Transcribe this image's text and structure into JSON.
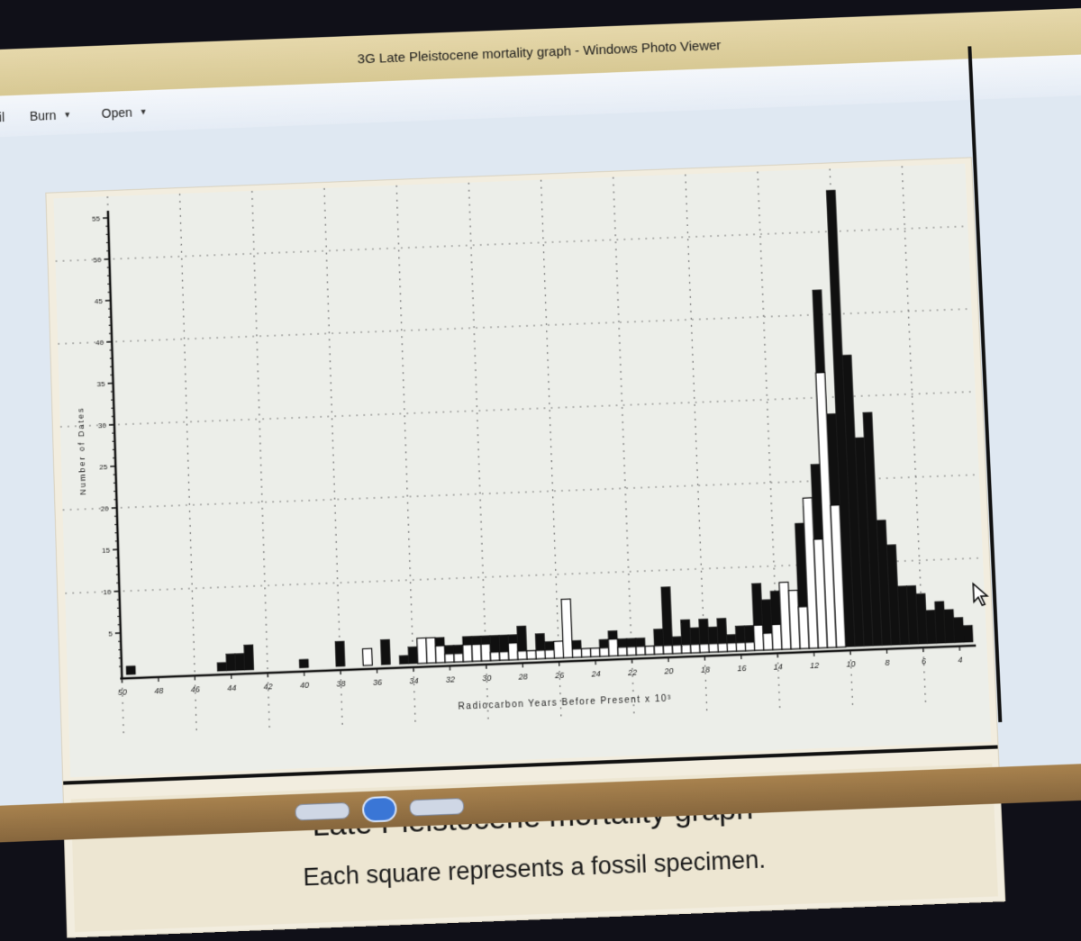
{
  "window": {
    "title": "3G Late Pleistocene mortality graph - Windows Photo Viewer"
  },
  "menu": {
    "partial_left": "ail",
    "items": [
      {
        "label": "Burn"
      },
      {
        "label": "Open"
      }
    ]
  },
  "slide": {
    "title": "Late Pleistocene mortality graph",
    "subtitle": "Each square represents a fossil specimen."
  },
  "chart_data": {
    "type": "bar",
    "xlabel": "Radiocarbon Years Before Present x 10³",
    "ylabel": "Number of Dates",
    "x_ticks": [
      "50",
      "48",
      "46",
      "44",
      "42",
      "40",
      "38",
      "36",
      "34",
      "32",
      "30",
      "28",
      "26",
      "24",
      "22",
      "20",
      "18",
      "16",
      "14",
      "12",
      "10",
      "8",
      "6",
      "4"
    ],
    "y_ticks": [
      "5",
      "10",
      "15",
      "20",
      "25",
      "30",
      "35",
      "40",
      "45",
      "50",
      "55"
    ],
    "xlim": [
      50,
      3.5
    ],
    "ylim": [
      0,
      55
    ],
    "grid": true,
    "series": [
      {
        "colour": "#101010",
        "x": [
          49.5,
          44.5,
          44,
          43.5,
          43,
          40,
          38,
          35.5,
          34.5,
          34,
          33.5,
          33,
          32.5,
          32,
          31.5,
          31,
          30.5,
          30,
          29.5,
          29,
          28.5,
          28,
          27.5,
          27,
          26.5,
          26,
          25.5,
          25,
          24.5,
          24,
          23.5,
          23,
          22.5,
          22,
          21.5,
          21,
          20.5,
          20,
          19.5,
          19,
          18.5,
          18,
          17.5,
          17,
          16.5,
          16,
          15.5,
          15,
          14.5,
          14,
          13.5,
          13,
          12.5,
          12,
          11.5,
          11,
          10.5,
          10,
          9.5,
          9,
          8.5,
          8,
          7.5,
          7,
          6.5,
          6,
          5.5,
          5,
          4.5,
          4,
          3.5
        ],
        "values": [
          1,
          1,
          2,
          2,
          3,
          1,
          3,
          3,
          1,
          2,
          2,
          3,
          3,
          2,
          2,
          3,
          3,
          3,
          3,
          3,
          3,
          4,
          1,
          3,
          2,
          2,
          6,
          2,
          1,
          1,
          2,
          3,
          2,
          2,
          2,
          1,
          3,
          8,
          2,
          4,
          3,
          4,
          3,
          4,
          2,
          3,
          3,
          8,
          6,
          7,
          7,
          7,
          15,
          17,
          22,
          43,
          28,
          55,
          35,
          25,
          28,
          15,
          12,
          7,
          7,
          6,
          4,
          5,
          4,
          3,
          2
        ]
      },
      {
        "colour": "#ffffff",
        "x": [
          36.5,
          33.5,
          33,
          32.5,
          32,
          31.5,
          31,
          30.5,
          30,
          29.5,
          29,
          28.5,
          28,
          27.5,
          27,
          26.5,
          26,
          25.5,
          25,
          24.5,
          24,
          23.5,
          23,
          22.5,
          22,
          21.5,
          21,
          20.5,
          20,
          19.5,
          19,
          18.5,
          18,
          17.5,
          17,
          16.5,
          16,
          15.5,
          15,
          14.5,
          14,
          13.5,
          13,
          12.5,
          12,
          11.5,
          11,
          10.5
        ],
        "values": [
          2,
          3,
          3,
          2,
          1,
          1,
          2,
          2,
          2,
          1,
          1,
          2,
          1,
          1,
          1,
          1,
          2,
          7,
          1,
          1,
          1,
          1,
          2,
          1,
          1,
          1,
          1,
          1,
          1,
          1,
          1,
          1,
          1,
          1,
          1,
          1,
          1,
          1,
          3,
          2,
          3,
          8,
          7,
          5,
          18,
          13,
          33,
          17
        ]
      }
    ]
  }
}
